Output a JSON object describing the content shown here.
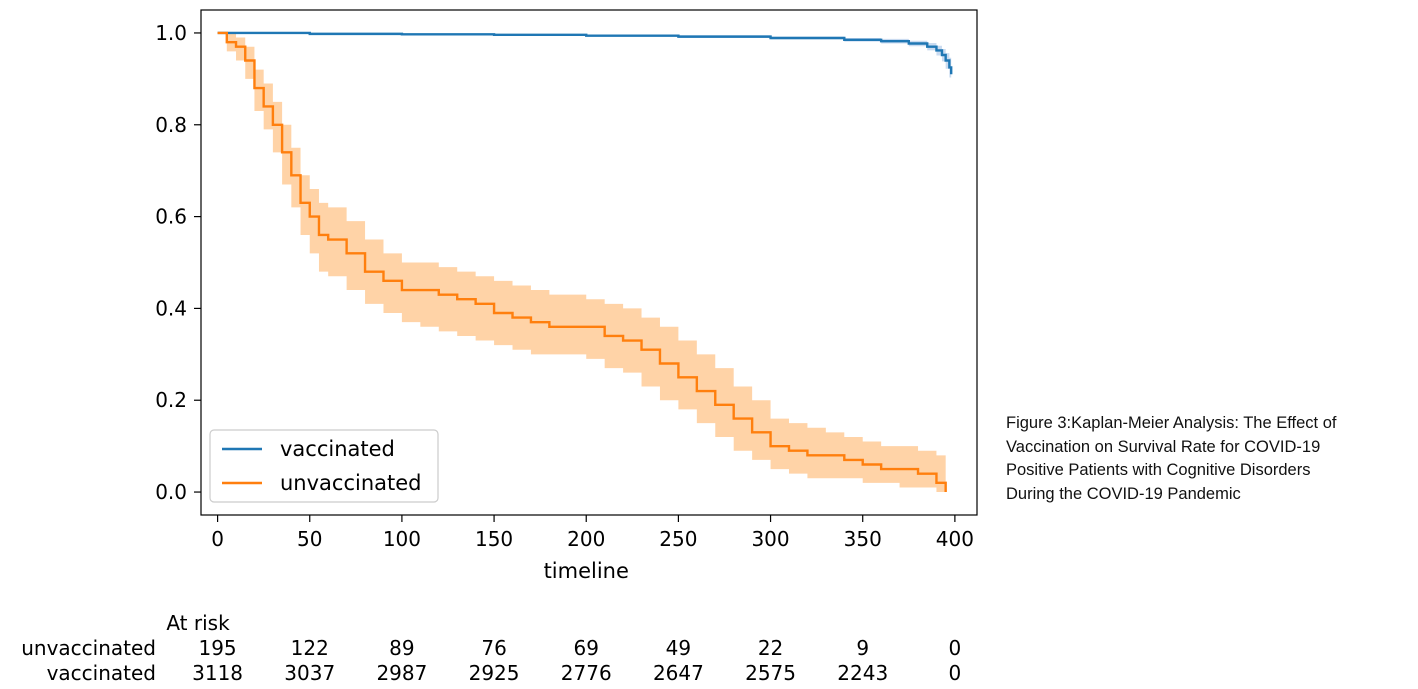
{
  "chart_data": {
    "type": "line",
    "subtype": "kaplan-meier",
    "title": "",
    "xlabel": "timeline",
    "ylabel": "",
    "xlim": [
      -9,
      412
    ],
    "ylim": [
      -0.05,
      1.05
    ],
    "x_ticks": [
      0,
      50,
      100,
      150,
      200,
      250,
      300,
      350,
      400
    ],
    "y_ticks": [
      0.0,
      0.2,
      0.4,
      0.6,
      0.8,
      1.0
    ],
    "x_tick_labels": [
      "0",
      "50",
      "100",
      "150",
      "200",
      "250",
      "300",
      "350",
      "400"
    ],
    "y_tick_labels": [
      "0.0",
      "0.2",
      "0.4",
      "0.6",
      "0.8",
      "1.0"
    ],
    "grid": false,
    "legend_position": "lower-left",
    "series": [
      {
        "name": "vaccinated",
        "color": "#1f77b4",
        "ci_color": "#aec7e8",
        "x": [
          0,
          20,
          50,
          100,
          150,
          200,
          250,
          300,
          340,
          360,
          375,
          385,
          390,
          393,
          395,
          397,
          398
        ],
        "y": [
          1.0,
          1.0,
          0.998,
          0.997,
          0.996,
          0.994,
          0.992,
          0.989,
          0.985,
          0.982,
          0.977,
          0.97,
          0.962,
          0.952,
          0.94,
          0.925,
          0.91
        ],
        "ci_lower": [
          1.0,
          1.0,
          0.997,
          0.996,
          0.994,
          0.992,
          0.989,
          0.986,
          0.981,
          0.977,
          0.971,
          0.962,
          0.951,
          0.938,
          0.922,
          0.903,
          0.885
        ],
        "ci_upper": [
          1.0,
          1.0,
          0.999,
          0.998,
          0.997,
          0.996,
          0.995,
          0.992,
          0.989,
          0.987,
          0.983,
          0.978,
          0.972,
          0.965,
          0.956,
          0.946,
          0.935
        ]
      },
      {
        "name": "unvaccinated",
        "color": "#ff7f0e",
        "ci_color": "#ffbb78",
        "x": [
          0,
          5,
          10,
          15,
          20,
          25,
          30,
          35,
          40,
          45,
          50,
          55,
          60,
          70,
          80,
          90,
          100,
          110,
          120,
          130,
          140,
          150,
          160,
          170,
          180,
          190,
          200,
          210,
          220,
          230,
          240,
          250,
          260,
          270,
          280,
          290,
          300,
          310,
          320,
          330,
          340,
          350,
          360,
          370,
          380,
          385,
          390,
          395
        ],
        "y": [
          1.0,
          0.98,
          0.97,
          0.94,
          0.88,
          0.84,
          0.8,
          0.74,
          0.69,
          0.63,
          0.6,
          0.56,
          0.55,
          0.52,
          0.48,
          0.46,
          0.44,
          0.44,
          0.43,
          0.42,
          0.41,
          0.39,
          0.38,
          0.37,
          0.36,
          0.36,
          0.36,
          0.34,
          0.33,
          0.31,
          0.28,
          0.25,
          0.22,
          0.19,
          0.16,
          0.13,
          0.1,
          0.09,
          0.08,
          0.08,
          0.07,
          0.06,
          0.05,
          0.05,
          0.04,
          0.04,
          0.02,
          0.0
        ],
        "ci_lower": [
          1.0,
          0.96,
          0.94,
          0.9,
          0.83,
          0.79,
          0.74,
          0.67,
          0.62,
          0.56,
          0.52,
          0.48,
          0.47,
          0.44,
          0.41,
          0.39,
          0.37,
          0.36,
          0.35,
          0.34,
          0.33,
          0.32,
          0.31,
          0.3,
          0.3,
          0.3,
          0.29,
          0.27,
          0.26,
          0.23,
          0.2,
          0.18,
          0.15,
          0.12,
          0.09,
          0.07,
          0.05,
          0.04,
          0.03,
          0.03,
          0.03,
          0.02,
          0.02,
          0.01,
          0.01,
          0.01,
          0.0,
          0.0
        ],
        "ci_upper": [
          1.0,
          1.0,
          0.99,
          0.97,
          0.92,
          0.89,
          0.85,
          0.8,
          0.75,
          0.69,
          0.66,
          0.63,
          0.62,
          0.59,
          0.55,
          0.52,
          0.5,
          0.5,
          0.49,
          0.48,
          0.47,
          0.46,
          0.45,
          0.44,
          0.43,
          0.43,
          0.42,
          0.41,
          0.4,
          0.38,
          0.36,
          0.33,
          0.3,
          0.27,
          0.23,
          0.2,
          0.16,
          0.15,
          0.14,
          0.13,
          0.12,
          0.11,
          0.1,
          0.1,
          0.09,
          0.09,
          0.08,
          0.04
        ]
      }
    ],
    "at_risk": {
      "title": "At risk",
      "rows": [
        {
          "label": "unvaccinated",
          "values": [
            "195",
            "122",
            "89",
            "76",
            "69",
            "49",
            "22",
            "9",
            "0"
          ]
        },
        {
          "label": "vaccinated",
          "values": [
            "3118",
            "3037",
            "2987",
            "2925",
            "2776",
            "2647",
            "2575",
            "2243",
            "0"
          ]
        }
      ]
    }
  },
  "caption": {
    "lines": [
      "Figure 3:Kaplan-Meier Analysis: The Effect of",
      "Vaccination on Survival Rate for COVID-19",
      "Positive Patients with Cognitive Disorders",
      "During the COVID-19 Pandemic"
    ]
  }
}
